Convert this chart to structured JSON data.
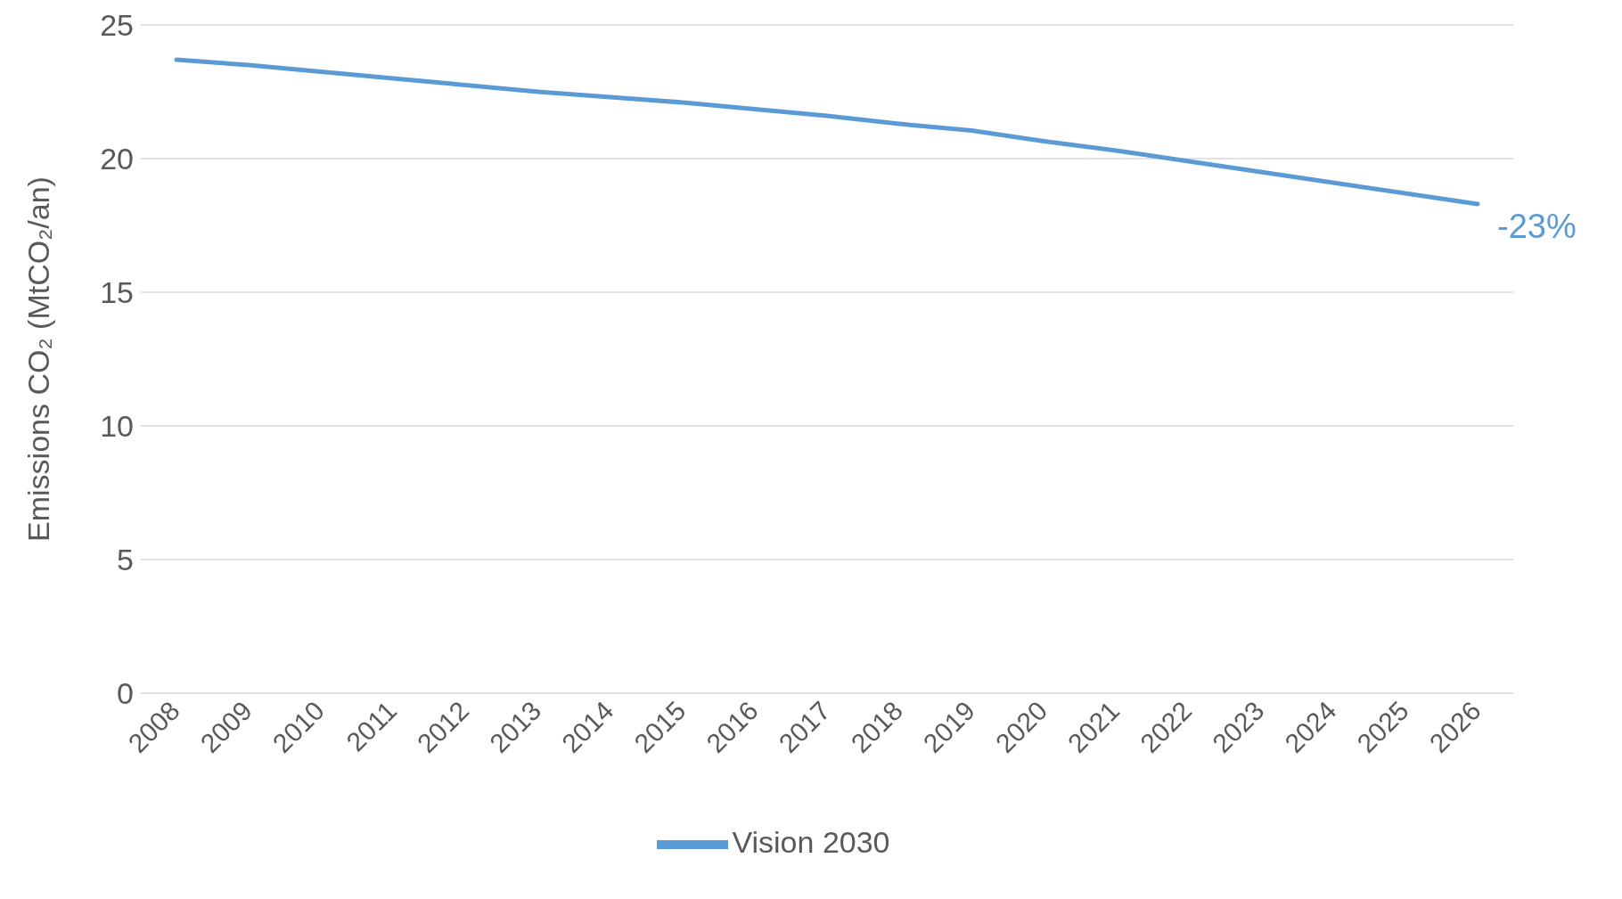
{
  "chart_data": {
    "type": "line",
    "ylabel": "Emissions CO₂ (MtCO₂/an)",
    "categories": [
      "2008",
      "2009",
      "2010",
      "2011",
      "2012",
      "2013",
      "2014",
      "2015",
      "2016",
      "2017",
      "2018",
      "2019",
      "2020",
      "2021",
      "2022",
      "2023",
      "2024",
      "2025",
      "2026"
    ],
    "series": [
      {
        "name": "Vision 2030",
        "color": "#5b9bd5",
        "values": [
          23.7,
          23.5,
          23.25,
          23.0,
          22.75,
          22.5,
          22.3,
          22.1,
          21.85,
          21.6,
          21.3,
          21.05,
          20.65,
          20.3,
          19.9,
          19.5,
          19.1,
          18.7,
          18.3
        ]
      }
    ],
    "ylim": [
      0,
      25
    ],
    "yticks": [
      0,
      5,
      10,
      15,
      20,
      25
    ],
    "grid": "y",
    "legend": "bottom",
    "marker": "none",
    "line_style": "solid",
    "annotations": [
      {
        "text": "-23%",
        "x": "2026",
        "y": 18.3
      }
    ]
  }
}
